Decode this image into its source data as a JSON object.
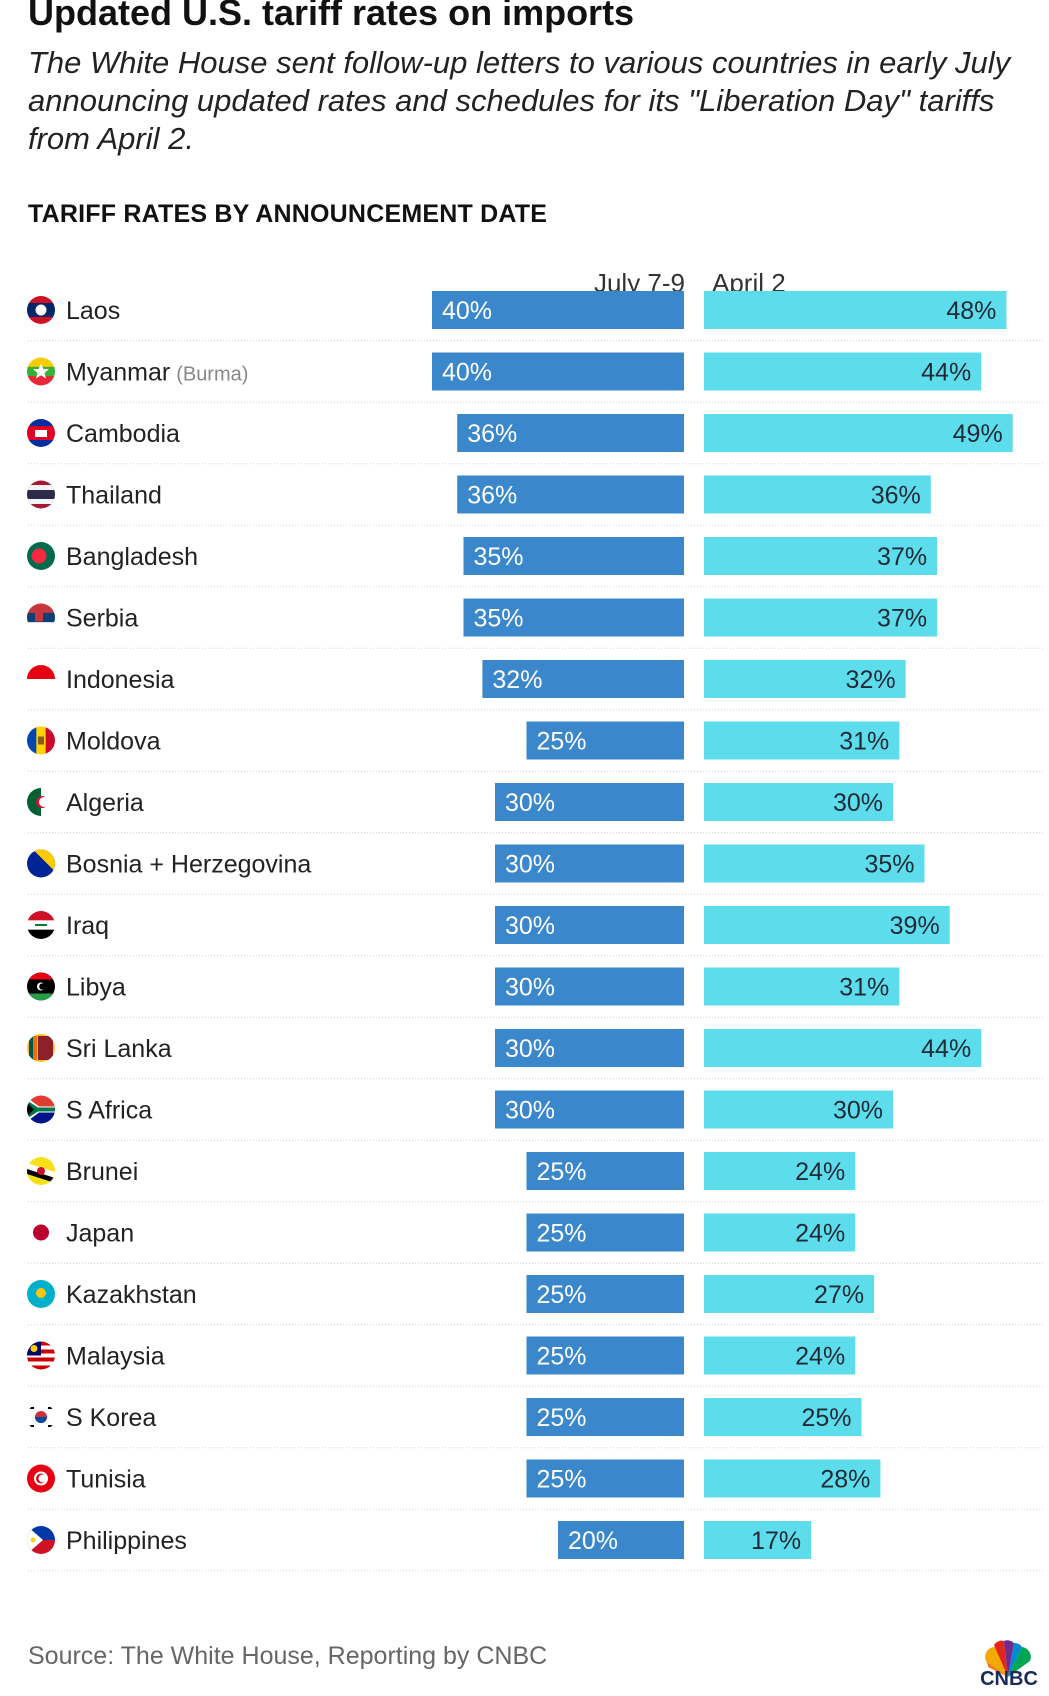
{
  "title": "Updated U.S. tariff rates on imports",
  "subtitle": "The White House sent follow-up letters to various countries in early July announcing updated rates and schedules for its \"Liberation Day\" tariffs from April 2.",
  "section_heading": "TARIFF RATES BY ANNOUNCEMENT DATE",
  "source": "Source: The White House, Reporting by CNBC",
  "logo_text": "CNBC",
  "colors": {
    "july": "#3b87cc",
    "april": "#5ddcec",
    "label_dark": "#ffffff",
    "label_on_april": "#1f2a36",
    "divider": "#cfcfcf"
  },
  "chart_data": {
    "type": "bar",
    "title": "TARIFF RATES BY ANNOUNCEMENT DATE",
    "orientation": "horizontal-butterfly",
    "unit": "%",
    "xlim": [
      0,
      50
    ],
    "series": [
      {
        "name": "July 7-9",
        "values": [
          40,
          40,
          36,
          36,
          35,
          35,
          32,
          25,
          30,
          30,
          30,
          30,
          30,
          30,
          25,
          25,
          25,
          25,
          25,
          25,
          20
        ]
      },
      {
        "name": "April 2",
        "values": [
          48,
          44,
          49,
          36,
          37,
          37,
          32,
          31,
          30,
          35,
          39,
          31,
          44,
          30,
          24,
          24,
          27,
          24,
          25,
          28,
          17
        ]
      }
    ],
    "categories": [
      "Laos",
      "Myanmar",
      "Cambodia",
      "Thailand",
      "Bangladesh",
      "Serbia",
      "Indonesia",
      "Moldova",
      "Algeria",
      "Bosnia + Herzegovina",
      "Iraq",
      "Libya",
      "Sri Lanka",
      "S Africa",
      "Brunei",
      "Japan",
      "Kazakhstan",
      "Malaysia",
      "S Korea",
      "Tunisia",
      "Philippines"
    ],
    "category_notes": [
      "",
      "(Burma)",
      "",
      "",
      "",
      "",
      "",
      "",
      "",
      "",
      "",
      "",
      "",
      "",
      "",
      "",
      "",
      "",
      "",
      "",
      ""
    ],
    "flags": [
      "laos-flag-icon",
      "myanmar-flag-icon",
      "cambodia-flag-icon",
      "thailand-flag-icon",
      "bangladesh-flag-icon",
      "serbia-flag-icon",
      "indonesia-flag-icon",
      "moldova-flag-icon",
      "algeria-flag-icon",
      "bosnia-flag-icon",
      "iraq-flag-icon",
      "libya-flag-icon",
      "sri-lanka-flag-icon",
      "south-africa-flag-icon",
      "brunei-flag-icon",
      "japan-flag-icon",
      "kazakhstan-flag-icon",
      "malaysia-flag-icon",
      "south-korea-flag-icon",
      "tunisia-flag-icon",
      "philippines-flag-icon"
    ]
  }
}
